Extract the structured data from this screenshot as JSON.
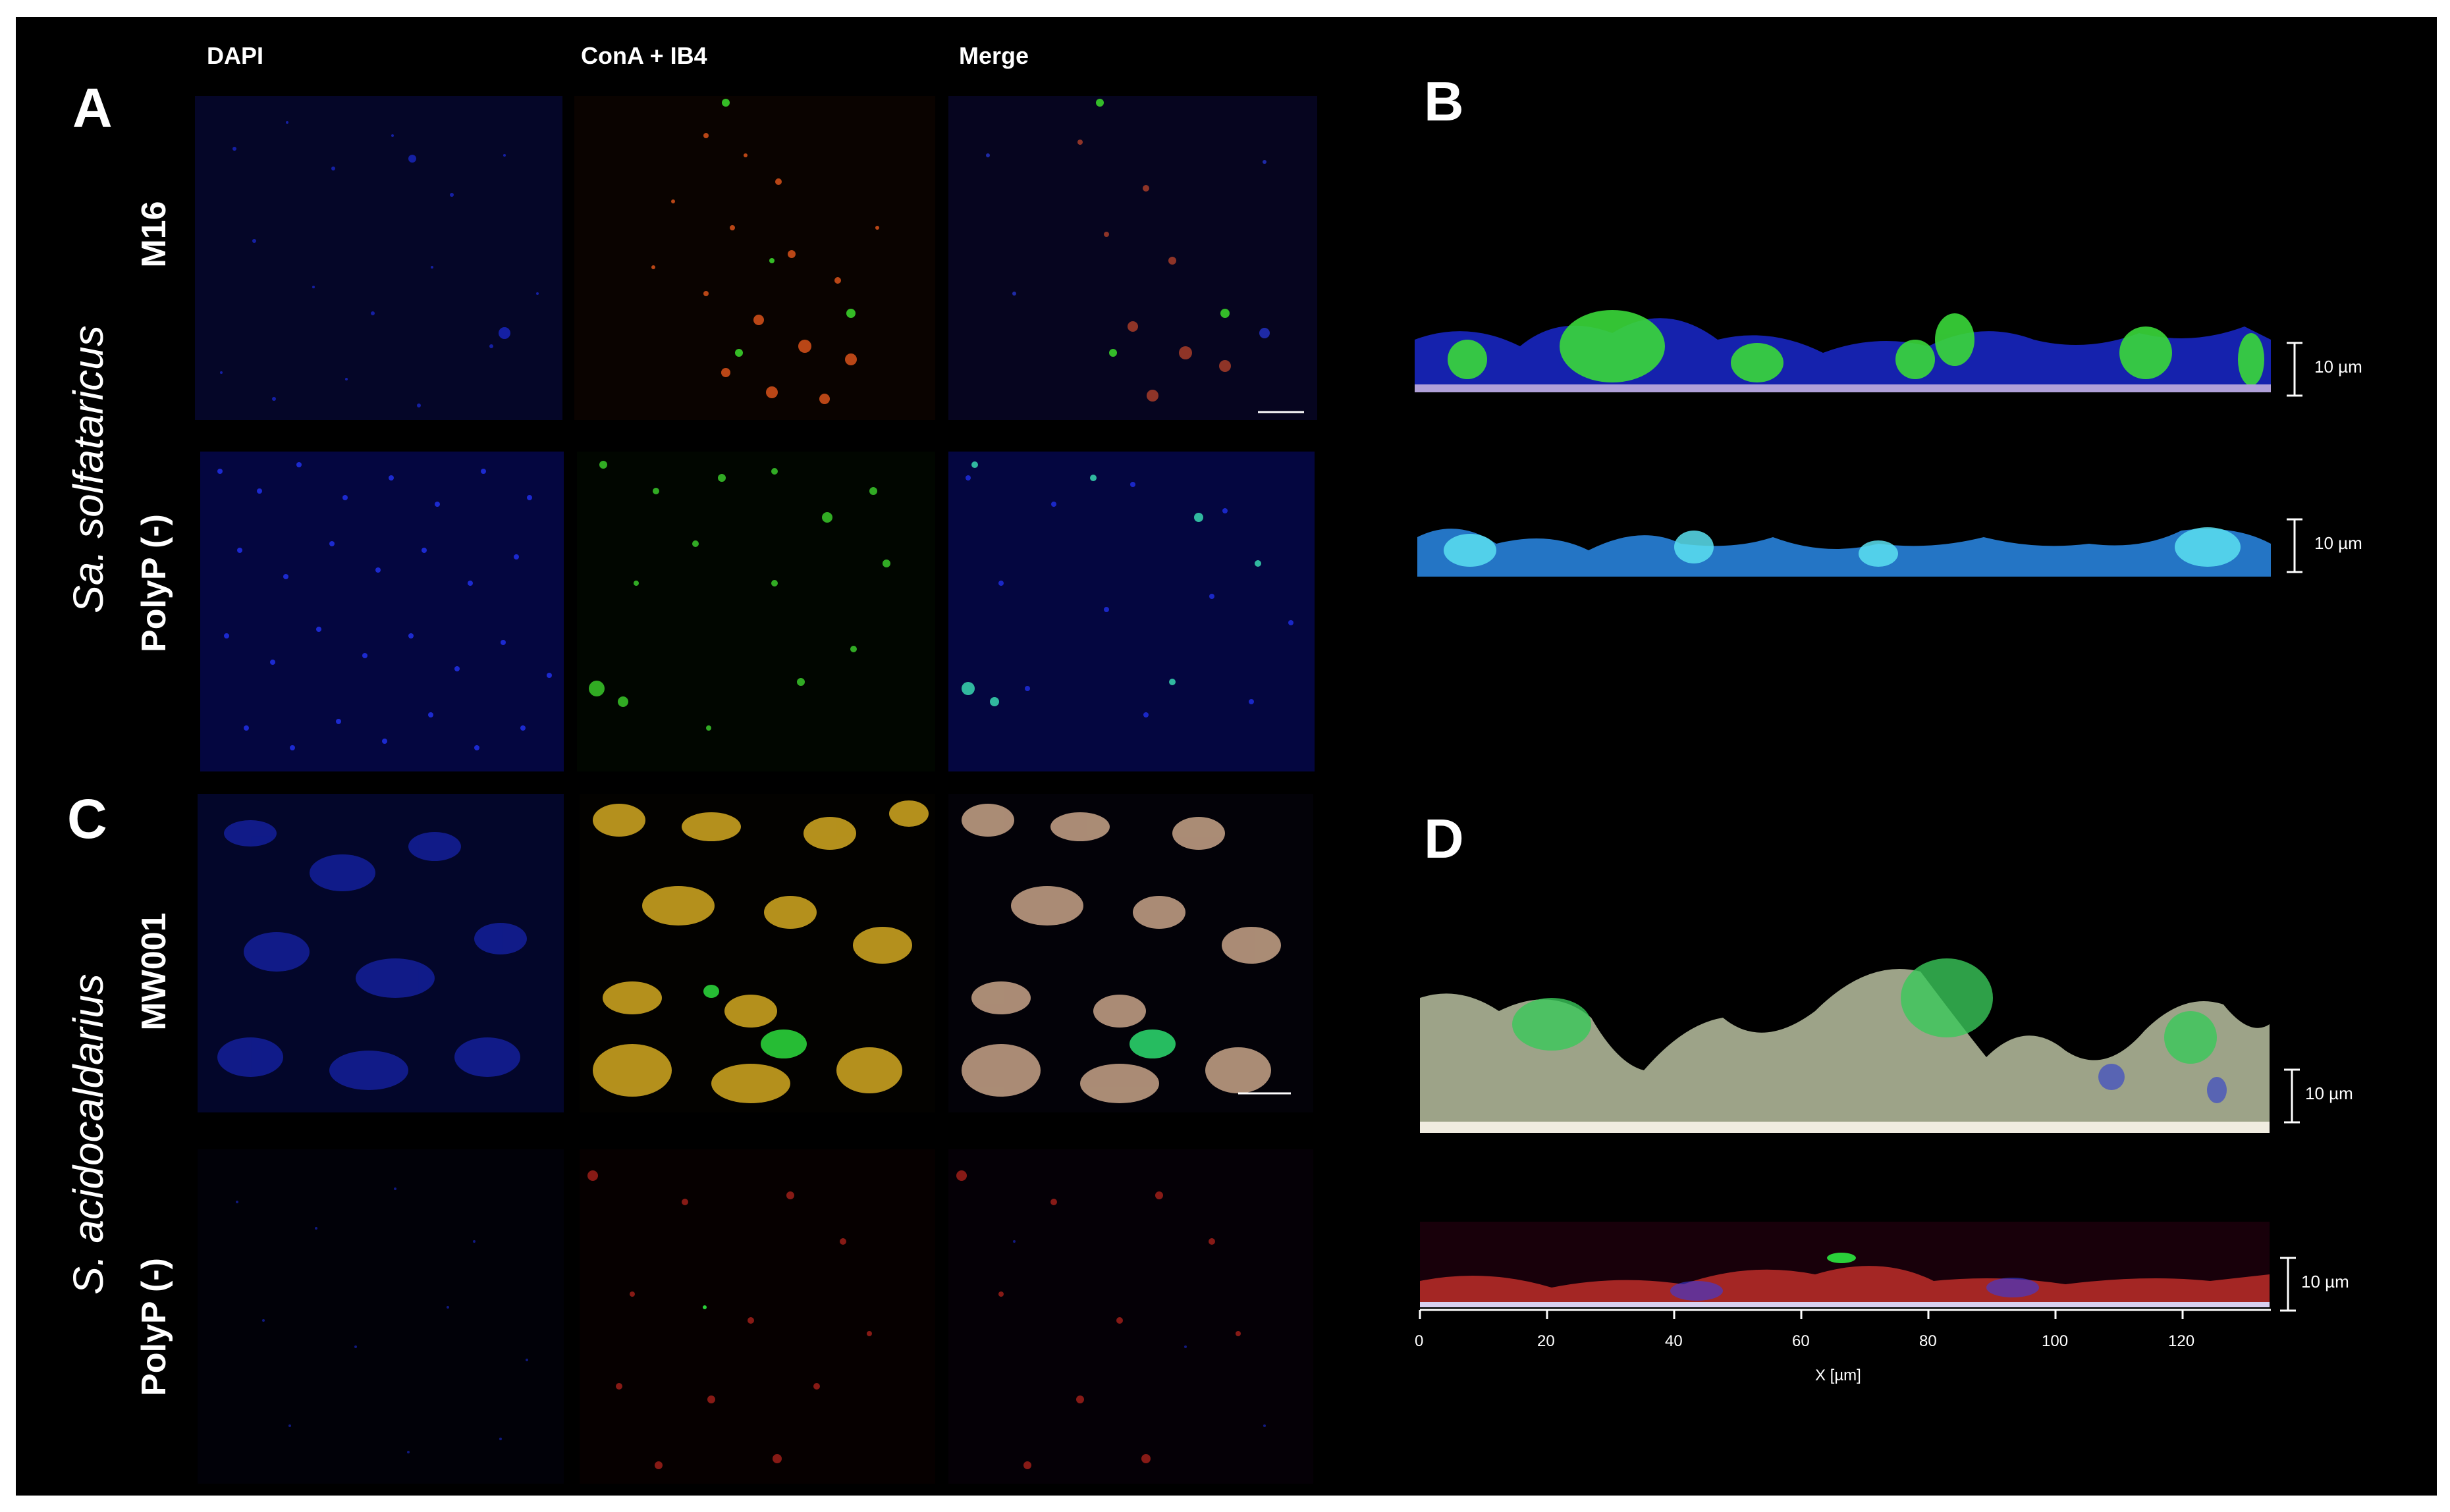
{
  "columns": {
    "dapi": "DAPI",
    "cona": "ConA + IB4",
    "merge": "Merge"
  },
  "panels": {
    "a": "A",
    "b": "B",
    "c": "C",
    "d": "D"
  },
  "species": {
    "top": "Sa. solfataricus",
    "bottom": "S. acidocaldarius"
  },
  "rows": {
    "m16": "M16",
    "polyp_top": "PolyP (-)",
    "mw001": "MW001",
    "polyp_bottom": "PolyP (-)"
  },
  "scale": {
    "label": "10 µm"
  },
  "axis": {
    "ticks": [
      "0",
      "20",
      "40",
      "60",
      "80",
      "100",
      "120"
    ],
    "label": "X [µm]"
  },
  "colors": {
    "background": "#000000",
    "dapi": "#1a2cff",
    "cona": "#ff5a1a",
    "ib4": "#2aff3a",
    "yellow": "#d9b020"
  }
}
